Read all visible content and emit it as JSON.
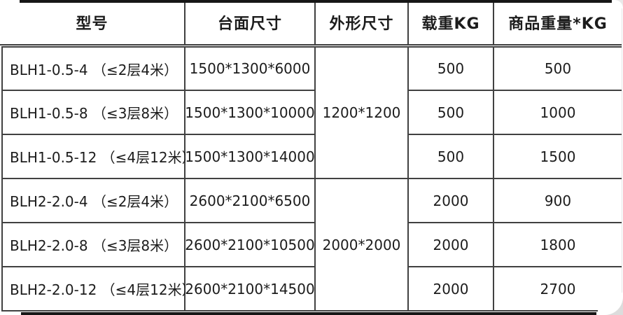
{
  "table": {
    "header": {
      "columns": [
        "型号",
        "台面尺寸",
        "外形尺寸",
        "载重KG",
        "商品重量*KG"
      ]
    },
    "rows": [
      {
        "model": "BLH1-0.5-4 （≤2层4米）",
        "platform_size": "1500*1300*6000",
        "load_kg": "500",
        "product_weight_kg": "500"
      },
      {
        "model": "BLH1-0.5-8 （≤3层8米）",
        "platform_size": "1500*1300*10000",
        "load_kg": "500",
        "product_weight_kg": "1000"
      },
      {
        "model": "BLH1-0.5-12 （≤4层12米）",
        "platform_size": "1500*1300*14000",
        "load_kg": "500",
        "product_weight_kg": "1500"
      },
      {
        "model": "BLH2-2.0-4 （≤2层4米）",
        "platform_size": "2600*2100*6500",
        "load_kg": "2000",
        "product_weight_kg": "900"
      },
      {
        "model": "BLH2-2.0-8 （≤3层8米）",
        "platform_size": "2600*2100*10500",
        "load_kg": "2000",
        "product_weight_kg": "1800"
      },
      {
        "model": "BLH2-2.0-12 （≤4层12米）",
        "platform_size": "2600*2100*14500",
        "load_kg": "2000",
        "product_weight_kg": "2700"
      }
    ],
    "merged_cells": [
      {
        "column": "外形尺寸",
        "value": "1200*1200",
        "row_start": 1,
        "row_end": 3
      },
      {
        "column": "外形尺寸",
        "value": "2000*2000",
        "row_start": 4,
        "row_end": 6
      }
    ]
  },
  "colors": {
    "border": "#414141",
    "bar": "#161616",
    "text": "#1c1c1c",
    "background": "#ffffff"
  }
}
